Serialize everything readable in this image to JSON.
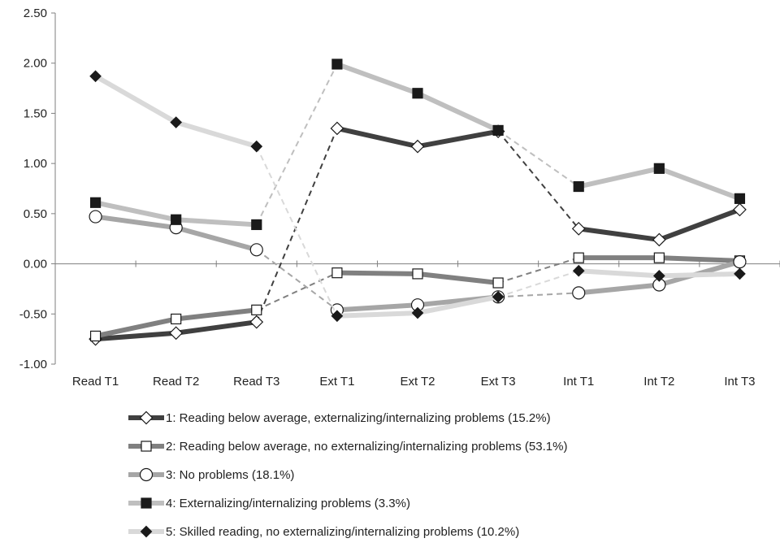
{
  "chart_data": {
    "type": "line",
    "title": "",
    "xlabel": "",
    "ylabel": "",
    "categories": [
      "Read T1",
      "Read T2",
      "Read T3",
      "Ext T1",
      "Ext T2",
      "Ext T3",
      "Int T1",
      "Int T2",
      "Int T3"
    ],
    "ylim": [
      -1.0,
      2.5
    ],
    "yticks": [
      "2.50",
      "2.00",
      "1.50",
      "1.00",
      "0.50",
      "0.00",
      "-0.50",
      "-1.00"
    ],
    "grid": false,
    "legend_position": "bottom",
    "series": [
      {
        "name": "1: Reading below average, externalizing/internalizing problems (15.2%)",
        "values": [
          -0.75,
          -0.69,
          -0.58,
          1.35,
          1.17,
          1.32,
          0.35,
          0.24,
          0.54
        ],
        "color": "#404040",
        "marker": "diamond-open"
      },
      {
        "name": "2: Reading below average, no externalizing/internalizing problems (53.1%)",
        "values": [
          -0.72,
          -0.55,
          -0.46,
          -0.09,
          -0.1,
          -0.19,
          0.06,
          0.06,
          0.03
        ],
        "color": "#808080",
        "marker": "square-open"
      },
      {
        "name": "3: No problems (18.1%)",
        "values": [
          0.47,
          0.36,
          0.14,
          -0.46,
          -0.41,
          -0.33,
          -0.29,
          -0.21,
          0.02
        ],
        "color": "#a6a6a6",
        "marker": "circle-open"
      },
      {
        "name": "4: Externalizing/internalizing problems (3.3%)",
        "values": [
          0.61,
          0.44,
          0.39,
          1.99,
          1.7,
          1.33,
          0.77,
          0.95,
          0.65
        ],
        "color": "#bfbfbf",
        "marker": "square-filled"
      },
      {
        "name": "5: Skilled reading, no externalizing/internalizing problems (10.2%)",
        "values": [
          1.87,
          1.41,
          1.17,
          -0.52,
          -0.49,
          -0.33,
          -0.07,
          -0.12,
          -0.1
        ],
        "color": "#d9d9d9",
        "marker": "diamond-filled"
      }
    ]
  }
}
